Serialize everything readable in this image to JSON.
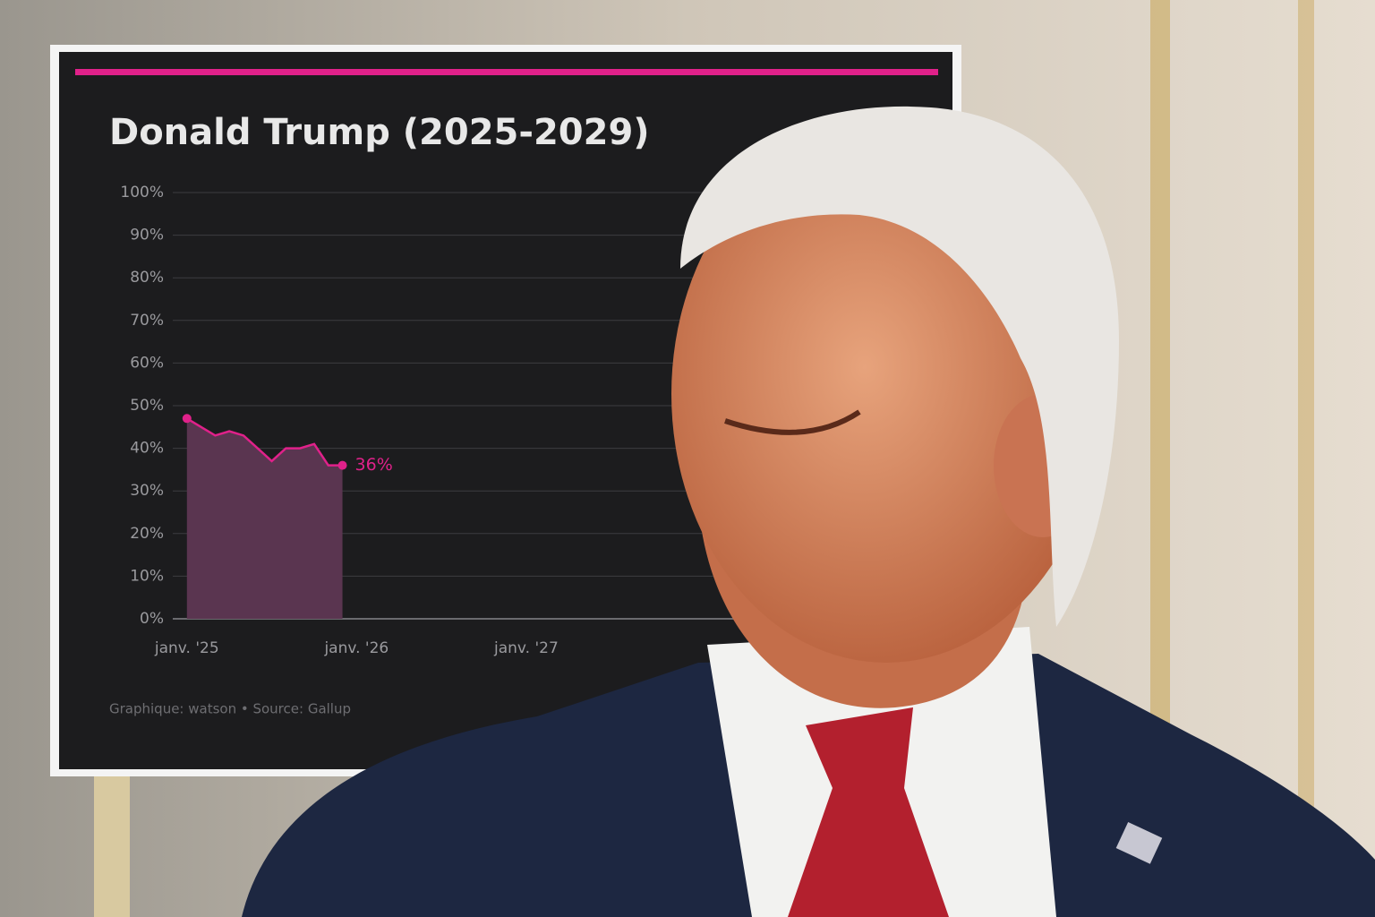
{
  "chart_data": {
    "type": "area",
    "title": "Donald Trump (2025-2029)",
    "source": "Graphique: watson • Source: Gallup",
    "x": [
      "2025-01",
      "2025-02",
      "2025-03",
      "2025-04",
      "2025-05",
      "2025-06",
      "2025-07",
      "2025-08",
      "2025-09",
      "2025-10",
      "2025-11",
      "2025-12"
    ],
    "series": [
      {
        "color": "#e0218a",
        "fill": "#5a3550",
        "values": [
          47,
          45,
          43,
          44,
          43,
          40,
          37,
          40,
          40,
          41,
          36,
          36
        ],
        "value_labels": [
          null,
          null,
          null,
          null,
          null,
          null,
          null,
          null,
          null,
          null,
          null,
          "36%"
        ]
      }
    ],
    "xlim": [
      "2024-12",
      "2029-01"
    ],
    "xticks": [
      {
        "value": "2025-01",
        "label": "janv. '25"
      },
      {
        "value": "2026-01",
        "label": "janv. '26"
      },
      {
        "value": "2027-01",
        "label": "janv. '27"
      }
    ],
    "ylim": [
      0,
      100
    ],
    "yticks": [
      {
        "value": 0,
        "label": "0%"
      },
      {
        "value": 10,
        "label": "10%"
      },
      {
        "value": 20,
        "label": "20%"
      },
      {
        "value": 30,
        "label": "30%"
      },
      {
        "value": 40,
        "label": "40%"
      },
      {
        "value": 50,
        "label": "50%"
      },
      {
        "value": 60,
        "label": "60%"
      },
      {
        "value": 70,
        "label": "70%"
      },
      {
        "value": 80,
        "label": "80%"
      },
      {
        "value": 90,
        "label": "90%"
      },
      {
        "value": 100,
        "label": "100%"
      }
    ],
    "grid": true
  }
}
